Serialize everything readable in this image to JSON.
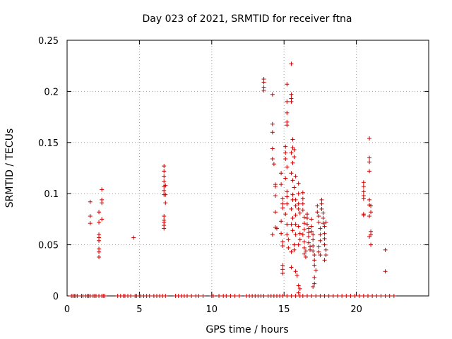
{
  "chart_data": {
    "type": "scatter",
    "title": "Day 023 of 2021, SRMTID for receiver ftna",
    "xlabel": "GPS time / hours",
    "ylabel": "SRMTID / TECUs",
    "xlim": [
      0,
      25
    ],
    "ylim": [
      0,
      0.25
    ],
    "x_ticks": [
      0,
      5,
      10,
      15,
      20
    ],
    "x_tick_labels": [
      "0",
      "5",
      "10",
      "15",
      "20"
    ],
    "y_ticks": [
      0,
      0.05,
      0.1,
      0.15,
      0.2,
      0.25
    ],
    "y_tick_labels": [
      "0",
      "0.05",
      "0.1",
      "0.15",
      "0.2",
      "0.25"
    ],
    "grid": true,
    "marker": "+",
    "color": "#cc0000",
    "series": [
      {
        "name": "SRMTID",
        "points": [
          [
            0.3,
            0
          ],
          [
            0.4,
            0
          ],
          [
            0.5,
            0
          ],
          [
            0.6,
            0
          ],
          [
            0.7,
            0
          ],
          [
            1.0,
            0
          ],
          [
            1.1,
            0
          ],
          [
            1.3,
            0
          ],
          [
            1.4,
            0
          ],
          [
            1.5,
            0
          ],
          [
            1.6,
            0
          ],
          [
            1.8,
            0
          ],
          [
            1.9,
            0
          ],
          [
            2.0,
            0
          ],
          [
            2.2,
            0
          ],
          [
            2.4,
            0
          ],
          [
            2.5,
            0
          ],
          [
            2.6,
            0
          ],
          [
            3.5,
            0
          ],
          [
            3.7,
            0
          ],
          [
            3.9,
            0
          ],
          [
            4.0,
            0
          ],
          [
            4.2,
            0
          ],
          [
            4.4,
            0
          ],
          [
            4.7,
            0
          ],
          [
            4.8,
            0
          ],
          [
            5.0,
            0
          ],
          [
            5.1,
            0
          ],
          [
            5.3,
            0
          ],
          [
            5.5,
            0
          ],
          [
            5.7,
            0
          ],
          [
            6.0,
            0
          ],
          [
            6.2,
            0
          ],
          [
            6.4,
            0
          ],
          [
            6.6,
            0
          ],
          [
            6.8,
            0
          ],
          [
            7.5,
            0
          ],
          [
            7.7,
            0
          ],
          [
            7.9,
            0
          ],
          [
            8.1,
            0
          ],
          [
            8.3,
            0
          ],
          [
            8.6,
            0
          ],
          [
            8.9,
            0
          ],
          [
            9.1,
            0
          ],
          [
            9.4,
            0
          ],
          [
            10.0,
            0
          ],
          [
            10.1,
            0
          ],
          [
            10.5,
            0
          ],
          [
            10.8,
            0
          ],
          [
            11.0,
            0
          ],
          [
            11.3,
            0
          ],
          [
            11.6,
            0
          ],
          [
            11.9,
            0
          ],
          [
            12.4,
            0
          ],
          [
            12.6,
            0
          ],
          [
            12.8,
            0
          ],
          [
            13.0,
            0
          ],
          [
            13.2,
            0
          ],
          [
            13.4,
            0
          ],
          [
            13.6,
            0
          ],
          [
            13.9,
            0
          ],
          [
            14.1,
            0
          ],
          [
            14.3,
            0
          ],
          [
            14.5,
            0
          ],
          [
            14.7,
            0
          ],
          [
            14.9,
            0
          ],
          [
            15.2,
            0
          ],
          [
            15.5,
            0
          ],
          [
            15.8,
            0
          ],
          [
            16.1,
            0
          ],
          [
            16.3,
            0
          ],
          [
            16.6,
            0
          ],
          [
            16.9,
            0
          ],
          [
            17.2,
            0
          ],
          [
            17.5,
            0
          ],
          [
            17.8,
            0
          ],
          [
            18.1,
            0
          ],
          [
            18.4,
            0
          ],
          [
            18.7,
            0
          ],
          [
            19.0,
            0
          ],
          [
            19.3,
            0
          ],
          [
            19.6,
            0
          ],
          [
            19.9,
            0
          ],
          [
            20.2,
            0
          ],
          [
            20.5,
            0
          ],
          [
            20.8,
            0
          ],
          [
            21.1,
            0
          ],
          [
            21.4,
            0
          ],
          [
            21.7,
            0
          ],
          [
            22.0,
            0
          ],
          [
            22.3,
            0
          ],
          [
            22.6,
            0
          ],
          [
            1.6,
            0.092
          ],
          [
            1.6,
            0.078
          ],
          [
            1.6,
            0.071
          ],
          [
            2.2,
            0.082
          ],
          [
            2.2,
            0.072
          ],
          [
            2.2,
            0.06
          ],
          [
            2.2,
            0.057
          ],
          [
            2.2,
            0.054
          ],
          [
            2.2,
            0.046
          ],
          [
            2.2,
            0.043
          ],
          [
            2.2,
            0.038
          ],
          [
            2.4,
            0.104
          ],
          [
            2.4,
            0.094
          ],
          [
            2.4,
            0.091
          ],
          [
            2.4,
            0.075
          ],
          [
            4.6,
            0.057
          ],
          [
            6.7,
            0.127
          ],
          [
            6.7,
            0.122
          ],
          [
            6.7,
            0.117
          ],
          [
            6.7,
            0.112
          ],
          [
            6.7,
            0.107
          ],
          [
            6.7,
            0.103
          ],
          [
            6.7,
            0.099
          ],
          [
            6.8,
            0.108
          ],
          [
            6.8,
            0.099
          ],
          [
            6.8,
            0.091
          ],
          [
            6.7,
            0.078
          ],
          [
            6.7,
            0.074
          ],
          [
            6.7,
            0.072
          ],
          [
            6.7,
            0.069
          ],
          [
            6.7,
            0.066
          ],
          [
            13.6,
            0.212
          ],
          [
            13.6,
            0.209
          ],
          [
            13.6,
            0.204
          ],
          [
            13.6,
            0.201
          ],
          [
            14.2,
            0.197
          ],
          [
            14.2,
            0.168
          ],
          [
            14.2,
            0.16
          ],
          [
            14.2,
            0.144
          ],
          [
            14.2,
            0.134
          ],
          [
            14.3,
            0.129
          ],
          [
            14.2,
            0.06
          ],
          [
            14.4,
            0.109
          ],
          [
            14.4,
            0.107
          ],
          [
            14.4,
            0.098
          ],
          [
            14.4,
            0.082
          ],
          [
            14.4,
            0.067
          ],
          [
            14.5,
            0.066
          ],
          [
            14.8,
            0.12
          ],
          [
            14.8,
            0.109
          ],
          [
            14.9,
            0.095
          ],
          [
            14.9,
            0.09
          ],
          [
            14.9,
            0.086
          ],
          [
            14.8,
            0.073
          ],
          [
            14.8,
            0.061
          ],
          [
            14.9,
            0.053
          ],
          [
            14.9,
            0.049
          ],
          [
            14.9,
            0.03
          ],
          [
            14.9,
            0.026
          ],
          [
            14.9,
            0.022
          ],
          [
            15.1,
            0.146
          ],
          [
            15.1,
            0.14
          ],
          [
            15.1,
            0.134
          ],
          [
            15.2,
            0.126
          ],
          [
            15.1,
            0.115
          ],
          [
            15.2,
            0.102
          ],
          [
            15.2,
            0.097
          ],
          [
            15.2,
            0.09
          ],
          [
            15.1,
            0.08
          ],
          [
            15.2,
            0.07
          ],
          [
            15.2,
            0.06
          ],
          [
            15.3,
            0.055
          ],
          [
            15.3,
            0.047
          ],
          [
            15.2,
            0.207
          ],
          [
            15.2,
            0.19
          ],
          [
            15.2,
            0.179
          ],
          [
            15.2,
            0.17
          ],
          [
            15.2,
            0.167
          ],
          [
            15.5,
            0.227
          ],
          [
            15.5,
            0.197
          ],
          [
            15.5,
            0.193
          ],
          [
            15.5,
            0.19
          ],
          [
            15.6,
            0.153
          ],
          [
            15.6,
            0.145
          ],
          [
            15.5,
            0.14
          ],
          [
            15.6,
            0.13
          ],
          [
            15.5,
            0.12
          ],
          [
            15.6,
            0.113
          ],
          [
            15.6,
            0.099
          ],
          [
            15.6,
            0.094
          ],
          [
            15.5,
            0.085
          ],
          [
            15.6,
            0.076
          ],
          [
            15.5,
            0.07
          ],
          [
            15.6,
            0.064
          ],
          [
            15.5,
            0.043
          ],
          [
            15.5,
            0.028
          ],
          [
            15.7,
            0.143
          ],
          [
            15.7,
            0.136
          ],
          [
            15.8,
            0.117
          ],
          [
            15.7,
            0.106
          ],
          [
            15.8,
            0.094
          ],
          [
            15.8,
            0.088
          ],
          [
            15.8,
            0.079
          ],
          [
            15.8,
            0.07
          ],
          [
            15.8,
            0.06
          ],
          [
            15.7,
            0.05
          ],
          [
            15.7,
            0.045
          ],
          [
            15.8,
            0.024
          ],
          [
            15.9,
            0.02
          ],
          [
            16.0,
            0.11
          ],
          [
            16.0,
            0.1
          ],
          [
            16.0,
            0.09
          ],
          [
            16.0,
            0.085
          ],
          [
            16.1,
            0.081
          ],
          [
            16.0,
            0.068
          ],
          [
            16.1,
            0.061
          ],
          [
            16.1,
            0.055
          ],
          [
            16.0,
            0.05
          ],
          [
            16.0,
            0.01
          ],
          [
            16.1,
            0.007
          ],
          [
            16.0,
            0.003
          ],
          [
            16.3,
            0.101
          ],
          [
            16.3,
            0.095
          ],
          [
            16.3,
            0.09
          ],
          [
            16.3,
            0.084
          ],
          [
            16.4,
            0.077
          ],
          [
            16.4,
            0.071
          ],
          [
            16.4,
            0.065
          ],
          [
            16.3,
            0.06
          ],
          [
            16.4,
            0.053
          ],
          [
            16.4,
            0.047
          ],
          [
            16.5,
            0.044
          ],
          [
            16.4,
            0.041
          ],
          [
            16.5,
            0.038
          ],
          [
            16.6,
            0.08
          ],
          [
            16.6,
            0.076
          ],
          [
            16.6,
            0.07
          ],
          [
            16.7,
            0.066
          ],
          [
            16.7,
            0.062
          ],
          [
            16.7,
            0.058
          ],
          [
            16.7,
            0.052
          ],
          [
            16.8,
            0.048
          ],
          [
            16.8,
            0.045
          ],
          [
            16.9,
            0.075
          ],
          [
            16.9,
            0.068
          ],
          [
            16.9,
            0.063
          ],
          [
            17.0,
            0.06
          ],
          [
            17.0,
            0.055
          ],
          [
            17.0,
            0.049
          ],
          [
            17.0,
            0.044
          ],
          [
            17.1,
            0.04
          ],
          [
            17.1,
            0.035
          ],
          [
            17.1,
            0.03
          ],
          [
            17.2,
            0.025
          ],
          [
            17.1,
            0.018
          ],
          [
            17.1,
            0.012
          ],
          [
            17.0,
            0.009
          ],
          [
            17.3,
            0.088
          ],
          [
            17.3,
            0.082
          ],
          [
            17.4,
            0.078
          ],
          [
            17.4,
            0.072
          ],
          [
            17.5,
            0.066
          ],
          [
            17.5,
            0.06
          ],
          [
            17.5,
            0.054
          ],
          [
            17.4,
            0.048
          ],
          [
            17.4,
            0.043
          ],
          [
            17.5,
            0.04
          ],
          [
            17.6,
            0.094
          ],
          [
            17.6,
            0.09
          ],
          [
            17.6,
            0.085
          ],
          [
            17.7,
            0.081
          ],
          [
            17.7,
            0.076
          ],
          [
            17.7,
            0.071
          ],
          [
            17.8,
            0.068
          ],
          [
            17.8,
            0.061
          ],
          [
            17.8,
            0.056
          ],
          [
            17.8,
            0.05
          ],
          [
            17.9,
            0.045
          ],
          [
            17.9,
            0.04
          ],
          [
            17.8,
            0.035
          ],
          [
            17.9,
            0.072
          ],
          [
            20.5,
            0.111
          ],
          [
            20.5,
            0.107
          ],
          [
            20.5,
            0.102
          ],
          [
            20.5,
            0.098
          ],
          [
            20.5,
            0.095
          ],
          [
            20.5,
            0.08
          ],
          [
            20.5,
            0.079
          ],
          [
            20.9,
            0.154
          ],
          [
            20.9,
            0.135
          ],
          [
            20.9,
            0.131
          ],
          [
            20.9,
            0.122
          ],
          [
            20.9,
            0.094
          ],
          [
            20.9,
            0.089
          ],
          [
            21.0,
            0.088
          ],
          [
            21.0,
            0.082
          ],
          [
            20.9,
            0.078
          ],
          [
            21.0,
            0.063
          ],
          [
            21.0,
            0.06
          ],
          [
            20.9,
            0.058
          ],
          [
            21.0,
            0.05
          ],
          [
            22.0,
            0.045
          ],
          [
            22.0,
            0.024
          ]
        ]
      }
    ]
  }
}
